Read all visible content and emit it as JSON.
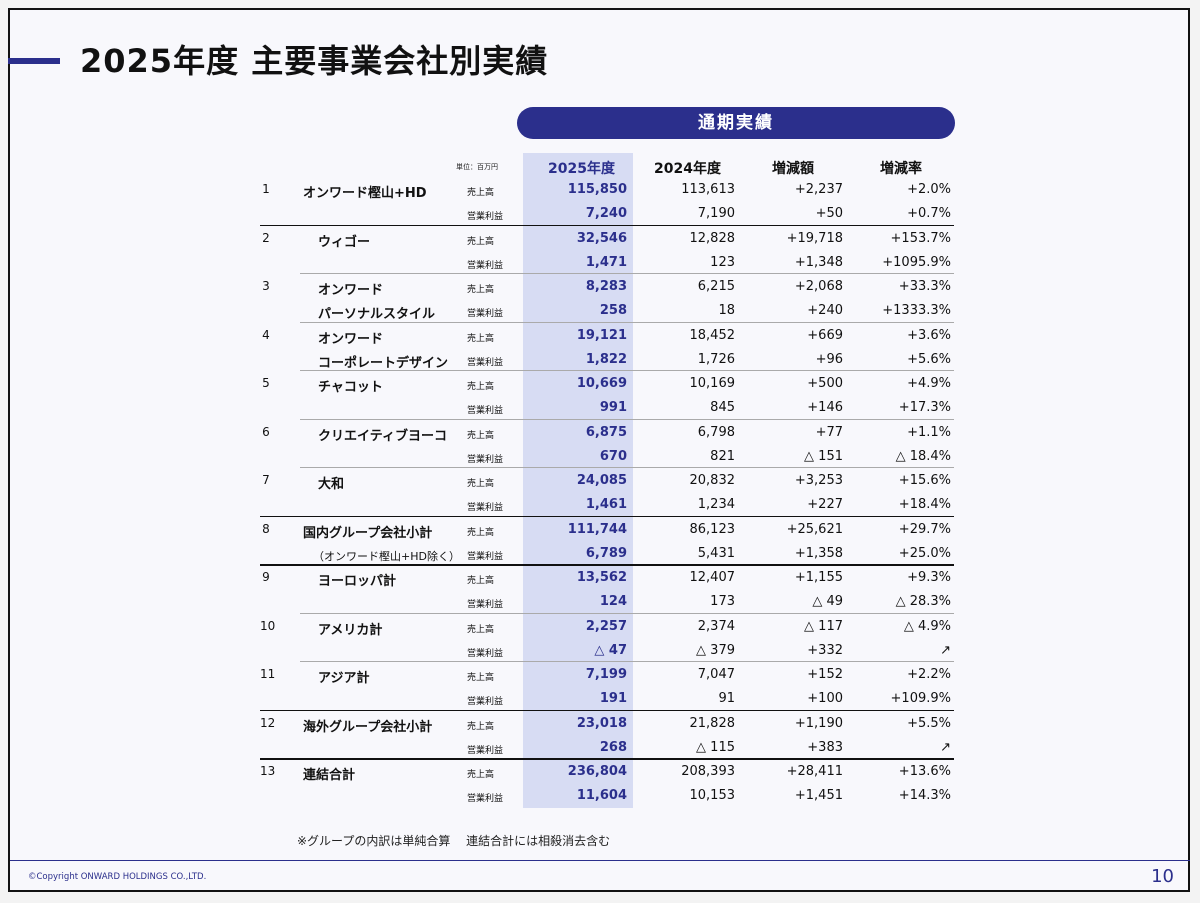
{
  "title": "2025年度 主要事業会社別実績",
  "period_label": "通期実績",
  "unit": "単位：百万円",
  "headers": [
    "2025年度",
    "2024年度",
    "増減額",
    "増減率"
  ],
  "companies": [
    {
      "no": "1",
      "name": [
        "オンワード樫山+HD"
      ],
      "sub": "",
      "rows": [
        {
          "metric": "売上高",
          "v2025": "115,850",
          "v2024": "113,613",
          "diff": "+2,237",
          "rate": "+2.0%"
        },
        {
          "metric": "営業利益",
          "v2025": "7,240",
          "v2024": "7,190",
          "diff": "+50",
          "rate": "+0.7%"
        }
      ]
    },
    {
      "no": "2",
      "name": [
        "ウィゴー"
      ],
      "sub": "",
      "rows": [
        {
          "metric": "売上高",
          "v2025": "32,546",
          "v2024": "12,828",
          "diff": "+19,718",
          "rate": "+153.7%"
        },
        {
          "metric": "営業利益",
          "v2025": "1,471",
          "v2024": "123",
          "diff": "+1,348",
          "rate": "+1095.9%"
        }
      ]
    },
    {
      "no": "3",
      "name": [
        "オンワード",
        "パーソナルスタイル"
      ],
      "sub": "",
      "rows": [
        {
          "metric": "売上高",
          "v2025": "8,283",
          "v2024": "6,215",
          "diff": "+2,068",
          "rate": "+33.3%"
        },
        {
          "metric": "営業利益",
          "v2025": "258",
          "v2024": "18",
          "diff": "+240",
          "rate": "+1333.3%"
        }
      ]
    },
    {
      "no": "4",
      "name": [
        "オンワード",
        "コーポレートデザイン"
      ],
      "sub": "",
      "rows": [
        {
          "metric": "売上高",
          "v2025": "19,121",
          "v2024": "18,452",
          "diff": "+669",
          "rate": "+3.6%"
        },
        {
          "metric": "営業利益",
          "v2025": "1,822",
          "v2024": "1,726",
          "diff": "+96",
          "rate": "+5.6%"
        }
      ]
    },
    {
      "no": "5",
      "name": [
        "チャコット"
      ],
      "sub": "",
      "rows": [
        {
          "metric": "売上高",
          "v2025": "10,669",
          "v2024": "10,169",
          "diff": "+500",
          "rate": "+4.9%"
        },
        {
          "metric": "営業利益",
          "v2025": "991",
          "v2024": "845",
          "diff": "+146",
          "rate": "+17.3%"
        }
      ]
    },
    {
      "no": "6",
      "name": [
        "クリエイティブヨーコ"
      ],
      "sub": "",
      "rows": [
        {
          "metric": "売上高",
          "v2025": "6,875",
          "v2024": "6,798",
          "diff": "+77",
          "rate": "+1.1%"
        },
        {
          "metric": "営業利益",
          "v2025": "670",
          "v2024": "821",
          "diff": "△ 151",
          "rate": "△ 18.4%"
        }
      ]
    },
    {
      "no": "7",
      "name": [
        "大和"
      ],
      "sub": "",
      "rows": [
        {
          "metric": "売上高",
          "v2025": "24,085",
          "v2024": "20,832",
          "diff": "+3,253",
          "rate": "+15.6%"
        },
        {
          "metric": "営業利益",
          "v2025": "1,461",
          "v2024": "1,234",
          "diff": "+227",
          "rate": "+18.4%"
        }
      ]
    },
    {
      "no": "8",
      "name": [
        "国内グループ会社小計"
      ],
      "sub": "（オンワード樫山+HD除く）",
      "rows": [
        {
          "metric": "売上高",
          "v2025": "111,744",
          "v2024": "86,123",
          "diff": "+25,621",
          "rate": "+29.7%"
        },
        {
          "metric": "営業利益",
          "v2025": "6,789",
          "v2024": "5,431",
          "diff": "+1,358",
          "rate": "+25.0%"
        }
      ]
    },
    {
      "no": "9",
      "name": [
        "ヨーロッパ計"
      ],
      "sub": "",
      "rows": [
        {
          "metric": "売上高",
          "v2025": "13,562",
          "v2024": "12,407",
          "diff": "+1,155",
          "rate": "+9.3%"
        },
        {
          "metric": "営業利益",
          "v2025": "124",
          "v2024": "173",
          "diff": "△ 49",
          "rate": "△ 28.3%"
        }
      ]
    },
    {
      "no": "10",
      "name": [
        "アメリカ計"
      ],
      "sub": "",
      "rows": [
        {
          "metric": "売上高",
          "v2025": "2,257",
          "v2024": "2,374",
          "diff": "△ 117",
          "rate": "△ 4.9%"
        },
        {
          "metric": "営業利益",
          "v2025": "△ 47",
          "v2024": "△ 379",
          "diff": "+332",
          "rate": "↗"
        }
      ]
    },
    {
      "no": "11",
      "name": [
        "アジア計"
      ],
      "sub": "",
      "rows": [
        {
          "metric": "売上高",
          "v2025": "7,199",
          "v2024": "7,047",
          "diff": "+152",
          "rate": "+2.2%"
        },
        {
          "metric": "営業利益",
          "v2025": "191",
          "v2024": "91",
          "diff": "+100",
          "rate": "+109.9%"
        }
      ]
    },
    {
      "no": "12",
      "name": [
        "海外グループ会社小計"
      ],
      "sub": "",
      "rows": [
        {
          "metric": "売上高",
          "v2025": "23,018",
          "v2024": "21,828",
          "diff": "+1,190",
          "rate": "+5.5%"
        },
        {
          "metric": "営業利益",
          "v2025": "268",
          "v2024": "△ 115",
          "diff": "+383",
          "rate": "↗"
        }
      ]
    },
    {
      "no": "13",
      "name": [
        "連結合計"
      ],
      "sub": "",
      "rows": [
        {
          "metric": "売上高",
          "v2025": "236,804",
          "v2024": "208,393",
          "diff": "+28,411",
          "rate": "+13.6%"
        },
        {
          "metric": "営業利益",
          "v2025": "11,604",
          "v2024": "10,153",
          "diff": "+1,451",
          "rate": "+14.3%"
        }
      ]
    }
  ],
  "note": "※グループの内訳は単純合算　 連結合計には相殺消去含む",
  "copyright": "©Copyright ONWARD HOLDINGS CO.,LTD.",
  "page_number": "10",
  "colors": {
    "accent": "#2b2f8c",
    "highlight": "#d7dcf3"
  }
}
